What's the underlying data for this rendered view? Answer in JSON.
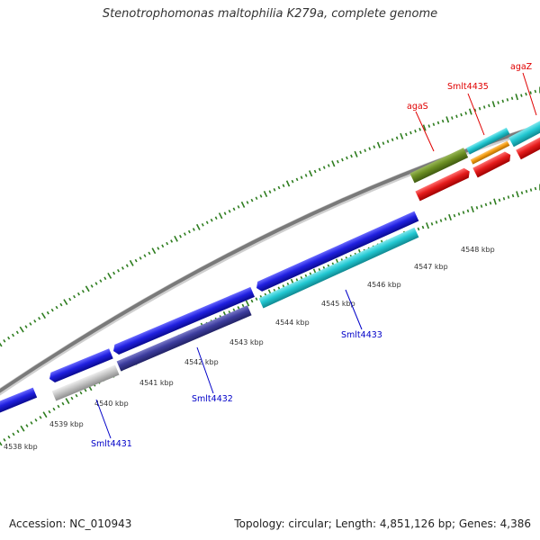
{
  "title": "Stenotrophomonas maltophilia K279a, complete genome",
  "footer": {
    "accession": "Accession: NC_010943",
    "stats": "Topology: circular; Length: 4,851,126 bp; Genes: 4,386"
  },
  "colors": {
    "backbone": "#8a8a8a",
    "tick": "#2e7d1f",
    "forward_gene": "#2020e0",
    "cds_cyan": "#22c8d2",
    "cds_purple": "#3d3d9e",
    "cds_gray": "#b8b8b8",
    "cds_olive": "#6b8e23",
    "cds_orange": "#f39c12",
    "cds_red": "#e51c1c",
    "label_red": "#e00000",
    "label_blue": "#0000c8"
  },
  "scale_labels": [
    "4538 kbp",
    "4539 kbp",
    "4540 kbp",
    "4541 kbp",
    "4542 kbp",
    "4543 kbp",
    "4544 kbp",
    "4545 kbp",
    "4546 kbp",
    "4547 kbp",
    "4548 kbp"
  ],
  "gene_labels": [
    {
      "name": "Smlt4431",
      "color": "blue"
    },
    {
      "name": "Smlt4432",
      "color": "blue"
    },
    {
      "name": "Smlt4433",
      "color": "blue"
    },
    {
      "name": "agaS",
      "color": "red"
    },
    {
      "name": "Smlt4435",
      "color": "red"
    },
    {
      "name": "agaZ",
      "color": "red"
    }
  ]
}
